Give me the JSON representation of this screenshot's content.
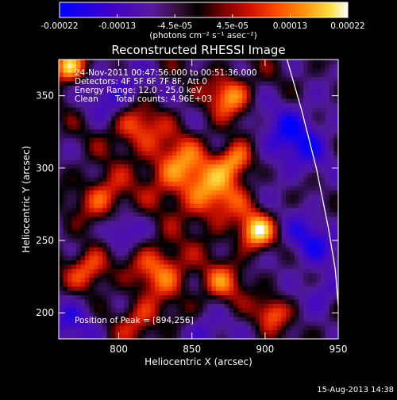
{
  "chart_data": {
    "type": "heatmap",
    "title": "Reconstructed RHESSI Image",
    "xlabel": "Heliocentric X (arcsec)",
    "ylabel": "Heliocentric Y (arcsec)",
    "xlim": [
      759,
      950
    ],
    "ylim": [
      182,
      375
    ],
    "x_ticks": [
      800,
      850,
      900,
      950
    ],
    "y_ticks": [
      200,
      250,
      300,
      350
    ],
    "colorbar": {
      "range": [
        -0.00022,
        0.00022
      ],
      "tick_labels": [
        "-0.00022",
        "-0.00013",
        "-4.5e-05",
        "4.5e-05",
        "0.00013",
        "0.00022"
      ],
      "units_label": "(photons cm⁻² s⁻¹ asec⁻²)",
      "colormap": "blue-purple-red-orange-yellow-white"
    },
    "annotations": {
      "time_range": "24-Nov-2011 00:47:56.000 to 00:51:36.000",
      "detectors": "Detectors: 4F 5F 6F 7F 8F, Att 0",
      "energy_range": "Energy Range: 12.0 - 25.0 keV",
      "algorithm": "Clean",
      "total_counts": "Total counts: 4.96E+03",
      "peak_label": "Position of Peak = [894,256]"
    },
    "peak_position": [
      894,
      256
    ],
    "limb_curve": [
      [
        915,
        375
      ],
      [
        925,
        340
      ],
      [
        935,
        300
      ],
      [
        943,
        260
      ],
      [
        948,
        230
      ],
      [
        950,
        205
      ]
    ],
    "hot_blobs": [
      {
        "x": 894,
        "y": 256,
        "r": 9,
        "v": 1.0
      },
      {
        "x": 880,
        "y": 305,
        "r": 9,
        "v": 0.85
      },
      {
        "x": 876,
        "y": 350,
        "r": 10,
        "v": 0.8
      },
      {
        "x": 865,
        "y": 280,
        "r": 14,
        "v": 0.7
      },
      {
        "x": 840,
        "y": 300,
        "r": 15,
        "v": 0.75
      },
      {
        "x": 810,
        "y": 330,
        "r": 12,
        "v": 0.75
      },
      {
        "x": 790,
        "y": 280,
        "r": 11,
        "v": 0.65
      },
      {
        "x": 780,
        "y": 230,
        "r": 10,
        "v": 0.7
      },
      {
        "x": 830,
        "y": 230,
        "r": 13,
        "v": 0.7
      },
      {
        "x": 870,
        "y": 220,
        "r": 10,
        "v": 0.6
      },
      {
        "x": 765,
        "y": 370,
        "r": 8,
        "v": 1.0
      },
      {
        "x": 905,
        "y": 200,
        "r": 8,
        "v": 0.6
      },
      {
        "x": 815,
        "y": 195,
        "r": 10,
        "v": 0.55
      }
    ],
    "cold_regions": [
      {
        "x": 800,
        "y": 350,
        "r": 14,
        "v": -0.6
      },
      {
        "x": 920,
        "y": 320,
        "r": 18,
        "v": -0.7
      },
      {
        "x": 930,
        "y": 250,
        "r": 14,
        "v": -0.6
      },
      {
        "x": 770,
        "y": 195,
        "r": 12,
        "v": -0.5
      },
      {
        "x": 860,
        "y": 185,
        "r": 10,
        "v": -0.5
      },
      {
        "x": 800,
        "y": 255,
        "r": 9,
        "v": -0.55
      },
      {
        "x": 940,
        "y": 215,
        "r": 9,
        "v": -0.5
      }
    ]
  },
  "footer": {
    "date": "15-Aug-2013 14:38"
  }
}
